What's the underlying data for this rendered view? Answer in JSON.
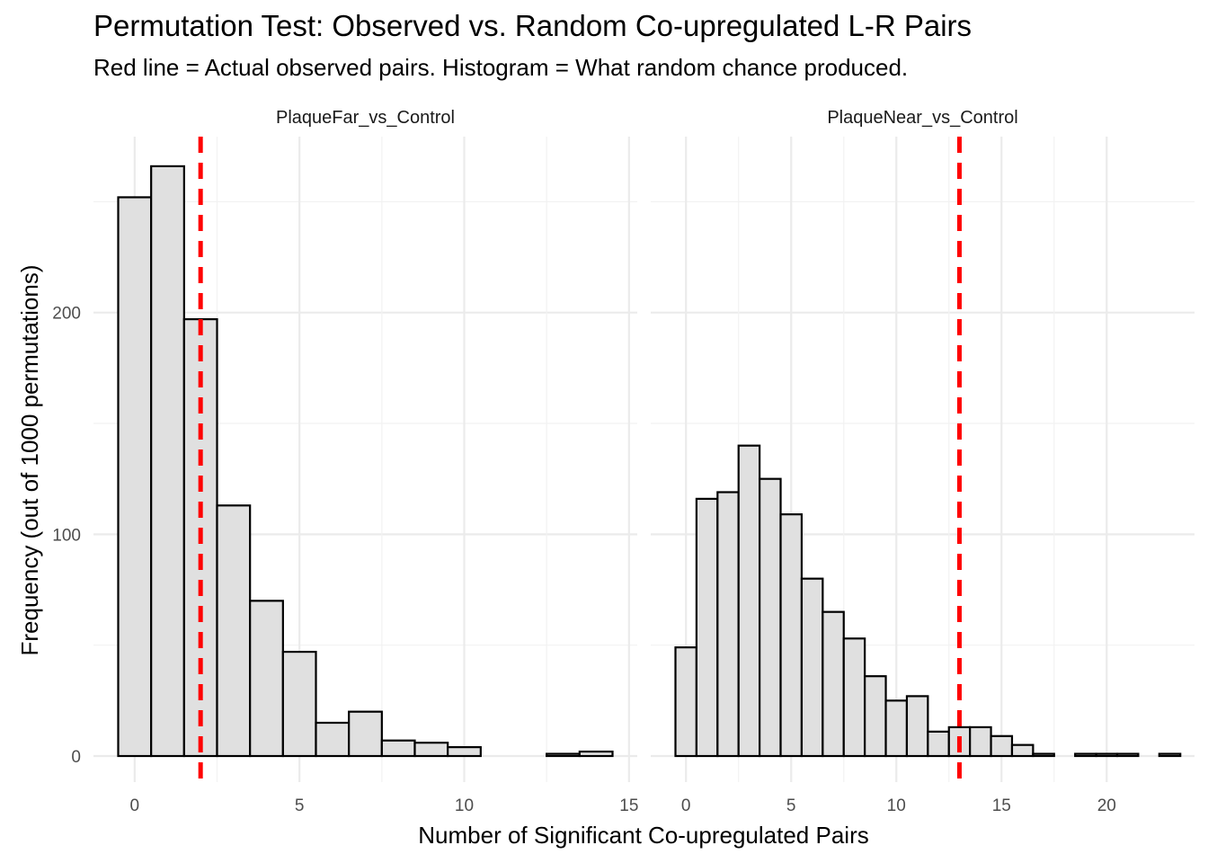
{
  "chart_data": {
    "type": "bar",
    "title": "Permutation Test: Observed vs. Random Co-upregulated L-R Pairs",
    "subtitle": "Red line = Actual observed pairs. Histogram = What random chance produced.",
    "xlabel": "Number of Significant Co-upregulated Pairs",
    "ylabel": "Frequency (out of 1000 permutations)",
    "ylim": [
      0,
      270
    ],
    "y_ticks": [
      0,
      100,
      200
    ],
    "colors": {
      "bar_fill": "#e0e0e0",
      "bar_stroke": "#000000",
      "observed_line": "#ff0000",
      "grid": "#ebebeb"
    },
    "panels": [
      {
        "strip": "PlaqueFar_vs_Control",
        "xlim": [
          -0.5,
          14.5
        ],
        "x_ticks": [
          0,
          5,
          10,
          15
        ],
        "bins": [
          0,
          1,
          2,
          3,
          4,
          5,
          6,
          7,
          8,
          9,
          10,
          11,
          12,
          13,
          14
        ],
        "values": [
          252,
          266,
          197,
          113,
          70,
          47,
          15,
          20,
          7,
          6,
          4,
          0,
          0,
          1,
          2
        ],
        "observed": 2
      },
      {
        "strip": "PlaqueNear_vs_Control",
        "xlim": [
          -0.5,
          23
        ],
        "x_ticks": [
          0,
          5,
          10,
          15,
          20
        ],
        "bins": [
          0,
          1,
          2,
          3,
          4,
          5,
          6,
          7,
          8,
          9,
          10,
          11,
          12,
          13,
          14,
          15,
          16,
          17,
          18,
          19,
          20,
          21,
          22,
          23
        ],
        "values": [
          49,
          116,
          119,
          140,
          125,
          109,
          80,
          65,
          53,
          36,
          25,
          27,
          11,
          13,
          13,
          9,
          5,
          1,
          0,
          1,
          1,
          1,
          0,
          1
        ],
        "observed": 13
      }
    ]
  }
}
